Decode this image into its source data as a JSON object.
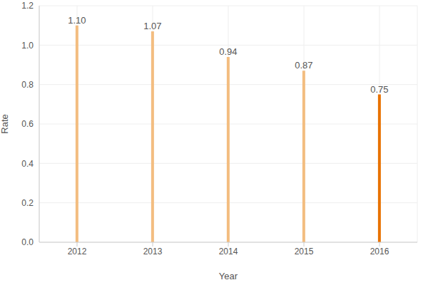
{
  "chart_data": {
    "type": "bar",
    "x_label": "Year",
    "y_label": "Rate",
    "categories": [
      "2012",
      "2013",
      "2014",
      "2015",
      "2016"
    ],
    "values": [
      1.1,
      1.07,
      0.94,
      0.87,
      0.75
    ],
    "value_labels": [
      "1.10",
      "1.07",
      "0.94",
      "0.87",
      "0.75"
    ],
    "colors": [
      "#f3bd80",
      "#f3bd80",
      "#f3bd80",
      "#f3bd80",
      "#e87200"
    ],
    "ylim": [
      0,
      1.2
    ],
    "yticks": [
      {
        "value": 0,
        "label": "0.0"
      },
      0.2,
      0.4,
      0.6,
      0.8,
      {
        "value": 1,
        "label": "1.0"
      },
      1.2
    ],
    "grid": true,
    "data_labels": true
  }
}
